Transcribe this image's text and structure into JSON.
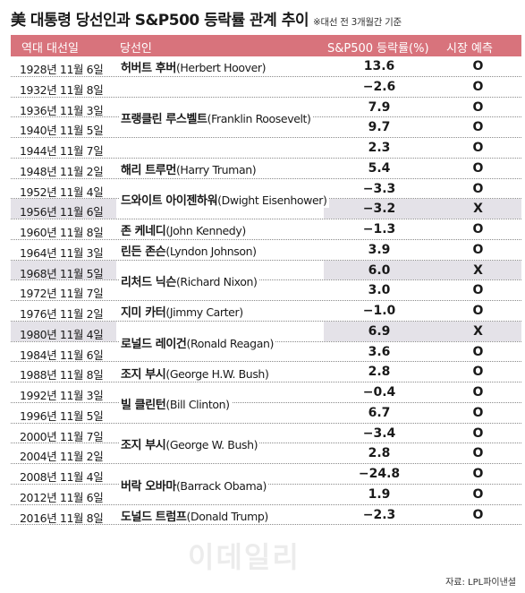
{
  "title": "美 대통령 당선인과 S&P500 등락률 관계 추이",
  "subtitle": "※대선 전 3개월간 기준",
  "headers": {
    "date": "역대 대선일",
    "winner": "당선인",
    "sp": "S&P500 등락률(%)",
    "prediction": "시장 예측"
  },
  "rows": [
    {
      "date": "1928년 11월 6일",
      "sp": "13.6",
      "pred": "O",
      "shaded": false
    },
    {
      "date": "1932년 11월 8일",
      "sp": "−2.6",
      "pred": "O",
      "shaded": false
    },
    {
      "date": "1936년 11월 3일",
      "sp": "7.9",
      "pred": "O",
      "shaded": false
    },
    {
      "date": "1940년 11월 5일",
      "sp": "9.7",
      "pred": "O",
      "shaded": false
    },
    {
      "date": "1944년 11월 7일",
      "sp": "2.3",
      "pred": "O",
      "shaded": false
    },
    {
      "date": "1948년 11월 2일",
      "sp": "5.4",
      "pred": "O",
      "shaded": false
    },
    {
      "date": "1952년 11월 4일",
      "sp": "−3.3",
      "pred": "O",
      "shaded": false
    },
    {
      "date": "1956년 11월 6일",
      "sp": "−3.2",
      "pred": "X",
      "shaded": true
    },
    {
      "date": "1960년 11월 8일",
      "sp": "−1.3",
      "pred": "O",
      "shaded": false
    },
    {
      "date": "1964년 11월 3일",
      "sp": "3.9",
      "pred": "O",
      "shaded": false
    },
    {
      "date": "1968년 11월 5일",
      "sp": "6.0",
      "pred": "X",
      "shaded": true
    },
    {
      "date": "1972년 11월 7일",
      "sp": "3.0",
      "pred": "O",
      "shaded": false
    },
    {
      "date": "1976년 11월 2일",
      "sp": "−1.0",
      "pred": "O",
      "shaded": false
    },
    {
      "date": "1980년 11월 4일",
      "sp": "6.9",
      "pred": "X",
      "shaded": true
    },
    {
      "date": "1984년 11월 6일",
      "sp": "3.6",
      "pred": "O",
      "shaded": false
    },
    {
      "date": "1988년 11월 8일",
      "sp": "2.8",
      "pred": "O",
      "shaded": false
    },
    {
      "date": "1992년 11월 3일",
      "sp": "−0.4",
      "pred": "O",
      "shaded": false
    },
    {
      "date": "1996년 11월 5일",
      "sp": "6.7",
      "pred": "O",
      "shaded": false
    },
    {
      "date": "2000년 11월 7일",
      "sp": "−3.4",
      "pred": "O",
      "shaded": false
    },
    {
      "date": "2004년 11월 2일",
      "sp": "2.8",
      "pred": "O",
      "shaded": false
    },
    {
      "date": "2008년 11월 4일",
      "sp": "−24.8",
      "pred": "O",
      "shaded": false
    },
    {
      "date": "2012년 11월 6일",
      "sp": "1.9",
      "pred": "O",
      "shaded": false
    },
    {
      "date": "2016년 11월 8일",
      "sp": "−2.3",
      "pred": "O",
      "shaded": false
    }
  ],
  "winners": [
    {
      "name": "허버트 후버",
      "eng": "(Herbert Hoover)",
      "start": 0,
      "span": 1
    },
    {
      "name": "프랭클린 루스벨트",
      "eng": "(Franklin Roosevelt)",
      "start": 1,
      "span": 4
    },
    {
      "name": "해리 트루먼",
      "eng": "(Harry Truman)",
      "start": 5,
      "span": 1
    },
    {
      "name": "드와이트 아이젠하워",
      "eng": "(Dwight Eisenhower)",
      "start": 6,
      "span": 2
    },
    {
      "name": "존 케네디",
      "eng": "(John Kennedy)",
      "start": 8,
      "span": 1
    },
    {
      "name": "린든 존슨",
      "eng": "(Lyndon Johnson)",
      "start": 9,
      "span": 1
    },
    {
      "name": "리처드 닉슨",
      "eng": "(Richard Nixon)",
      "start": 10,
      "span": 2
    },
    {
      "name": "지미 카터",
      "eng": "(Jimmy Carter)",
      "start": 12,
      "span": 1
    },
    {
      "name": "로널드 레이건",
      "eng": "(Ronald Reagan)",
      "start": 13,
      "span": 2
    },
    {
      "name": "조지 부시",
      "eng": "(George H.W. Bush)",
      "start": 15,
      "span": 1
    },
    {
      "name": "빌 클린턴",
      "eng": "(Bill Clinton)",
      "start": 16,
      "span": 2
    },
    {
      "name": "조지 부시",
      "eng": "(George W. Bush)",
      "start": 18,
      "span": 2
    },
    {
      "name": "버락 오바마",
      "eng": "(Barrack Obama)",
      "start": 20,
      "span": 2
    },
    {
      "name": "도널드 트럼프",
      "eng": "(Donald Trump)",
      "start": 22,
      "span": 1
    }
  ],
  "watermark": "이데일리",
  "source": "자료: LPL파이낸셜"
}
